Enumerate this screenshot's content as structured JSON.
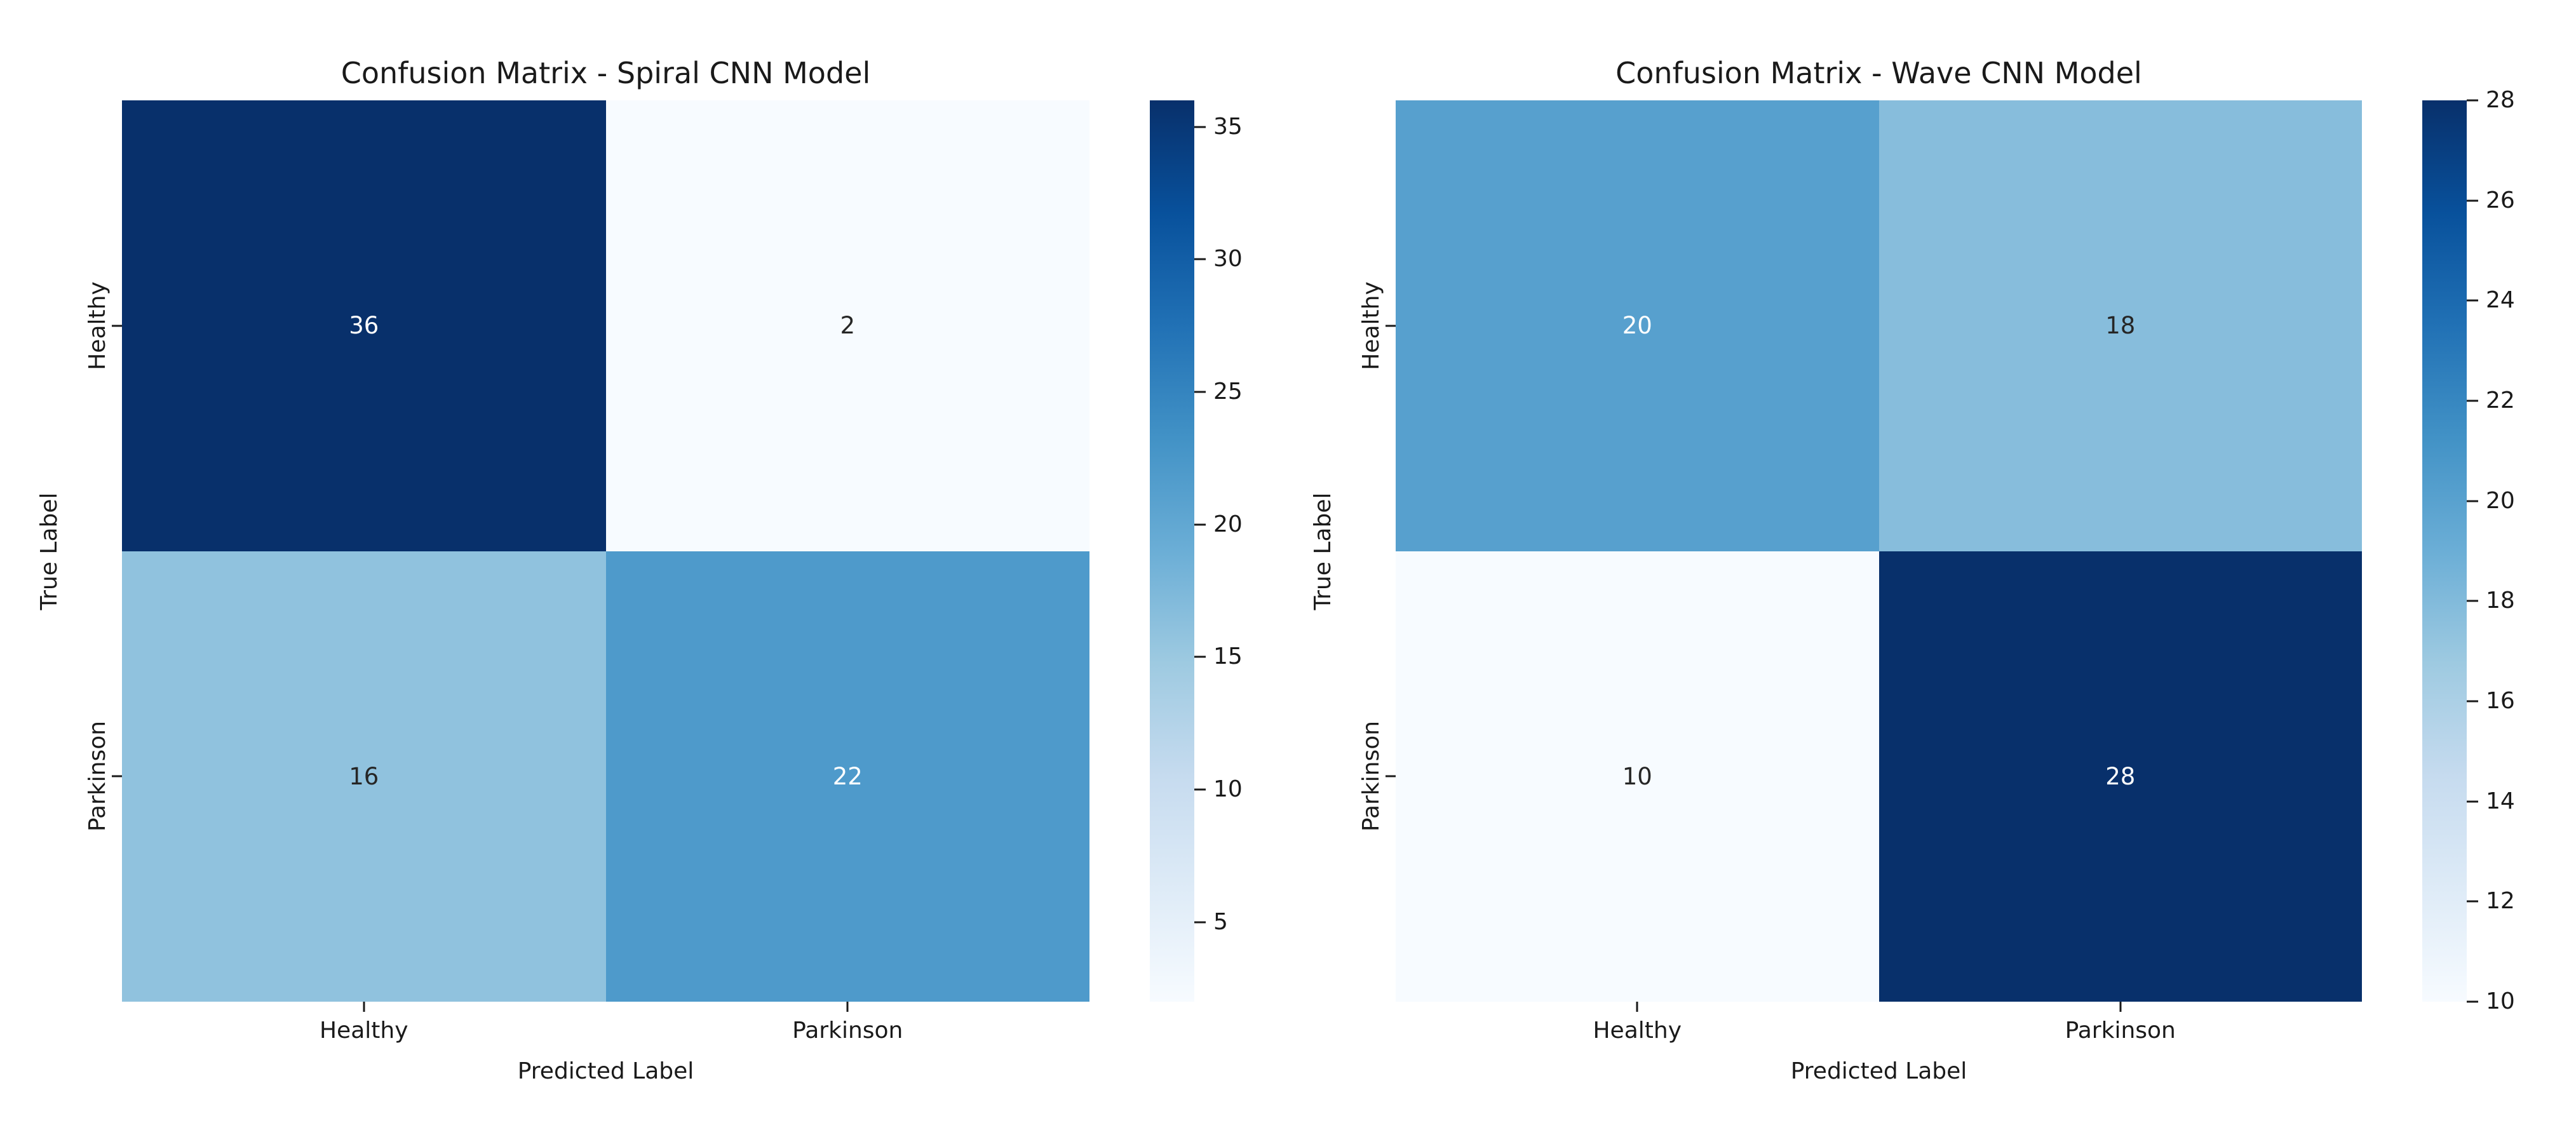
{
  "figure": {
    "background": "#ffffff",
    "text_color": "#1a1a1a",
    "colormap_name": "Blues",
    "colormap_low": "#f7fbff",
    "colormap_high": "#08306b"
  },
  "chart_data": [
    {
      "type": "heatmap",
      "title": "Confusion Matrix - Spiral CNN Model",
      "xlabel": "Predicted Label",
      "ylabel": "True Label",
      "x_categories": [
        "Healthy",
        "Parkinson"
      ],
      "y_categories": [
        "Healthy",
        "Parkinson"
      ],
      "values": [
        [
          36,
          2
        ],
        [
          16,
          22
        ]
      ],
      "vmin": 2,
      "vmax": 36,
      "colormap": "Blues",
      "colorbar_ticks": [
        35,
        30,
        25,
        20,
        15,
        10,
        5
      ],
      "cell_colors": [
        [
          "#08306b",
          "#f7fbff"
        ],
        [
          "#90c2de",
          "#4e9acb"
        ]
      ],
      "cell_text_colors": [
        [
          "#ffffff",
          "#262626"
        ],
        [
          "#262626",
          "#ffffff"
        ]
      ],
      "legend_position": "right-colorbar",
      "grid": false
    },
    {
      "type": "heatmap",
      "title": "Confusion Matrix - Wave CNN Model",
      "xlabel": "Predicted Label",
      "ylabel": "True Label",
      "x_categories": [
        "Healthy",
        "Parkinson"
      ],
      "y_categories": [
        "Healthy",
        "Parkinson"
      ],
      "values": [
        [
          20,
          18
        ],
        [
          10,
          28
        ]
      ],
      "vmin": 10,
      "vmax": 28,
      "colormap": "Blues",
      "colorbar_ticks": [
        28,
        26,
        24,
        22,
        20,
        18,
        16,
        14,
        12,
        10
      ],
      "cell_colors": [
        [
          "#57a0ce",
          "#87bddc"
        ],
        [
          "#f7fbff",
          "#08306b"
        ]
      ],
      "cell_text_colors": [
        [
          "#ffffff",
          "#262626"
        ],
        [
          "#262626",
          "#ffffff"
        ]
      ],
      "legend_position": "right-colorbar",
      "grid": false
    }
  ]
}
